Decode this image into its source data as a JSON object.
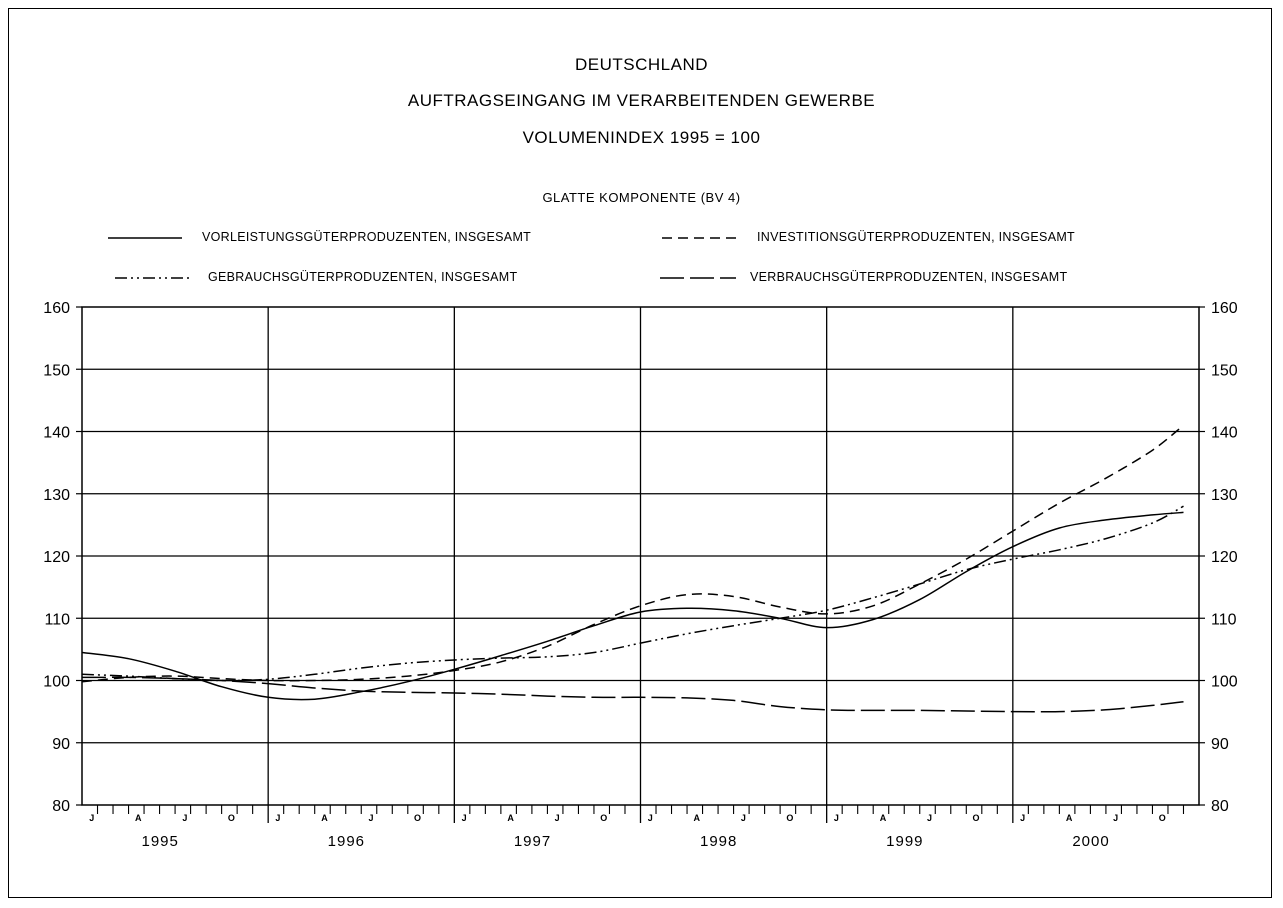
{
  "titles": {
    "line1": "DEUTSCHLAND",
    "line2": "AUFTRAGSEINGANG IM VERARBEITENDEN GEWERBE",
    "line3": "VOLUMENINDEX 1995 = 100",
    "subtitle": "GLATTE KOMPONENTE (BV 4)"
  },
  "chart_data": {
    "type": "line",
    "title": "DEUTSCHLAND",
    "xlabel": "",
    "ylabel": "",
    "ylim": [
      80,
      160
    ],
    "yticks": [
      80,
      90,
      100,
      110,
      120,
      130,
      140,
      150,
      160
    ],
    "years": [
      "1995",
      "1996",
      "1997",
      "1998",
      "1999",
      "2000"
    ],
    "quarter_labels": [
      "J",
      "A",
      "J",
      "O"
    ],
    "grid": true,
    "legend_position": "top",
    "x": [
      "1995-01",
      "1995-04",
      "1995-07",
      "1995-10",
      "1996-01",
      "1996-04",
      "1996-07",
      "1996-10",
      "1997-01",
      "1997-04",
      "1997-07",
      "1997-10",
      "1998-01",
      "1998-04",
      "1998-07",
      "1998-10",
      "1999-01",
      "1999-04",
      "1999-07",
      "1999-10",
      "2000-01",
      "2000-04",
      "2000-07",
      "2000-10",
      "2000-12"
    ],
    "series": [
      {
        "name": "VORLEISTUNGSGÜTERPRODUZENTEN, INSGESAMT",
        "style": "solid",
        "values": [
          104.5,
          103.5,
          101.5,
          99.0,
          97.3,
          97.0,
          98.2,
          99.8,
          101.8,
          104.0,
          106.3,
          108.8,
          111.0,
          111.6,
          111.2,
          110.0,
          108.5,
          109.8,
          113.0,
          117.5,
          121.5,
          124.5,
          125.8,
          126.6,
          127.0
        ]
      },
      {
        "name": "INVESTITIONSGÜTERPRODUZENTEN, INSGESAMT",
        "style": "dashed",
        "values": [
          99.8,
          100.5,
          100.7,
          100.3,
          100.0,
          100.0,
          100.2,
          100.7,
          101.6,
          103.0,
          105.5,
          109.0,
          112.0,
          113.8,
          113.5,
          111.8,
          110.7,
          112.0,
          115.5,
          119.5,
          124.0,
          128.5,
          132.5,
          137.0,
          141.0
        ]
      },
      {
        "name": "GEBRAUCHSGÜTERPRODUZENTEN, INSGESAMT",
        "style": "dashdotdot",
        "values": [
          101.0,
          100.7,
          100.3,
          100.0,
          100.2,
          101.0,
          102.0,
          102.8,
          103.3,
          103.6,
          103.8,
          104.5,
          106.0,
          107.5,
          108.8,
          110.0,
          111.3,
          113.3,
          115.5,
          117.8,
          119.5,
          121.0,
          122.8,
          125.3,
          128.0
        ]
      },
      {
        "name": "VERBRAUCHSGÜTERPRODUZENTEN, INSGESAMT",
        "style": "longdash",
        "values": [
          100.5,
          100.5,
          100.3,
          100.0,
          99.5,
          98.8,
          98.3,
          98.1,
          98.0,
          97.8,
          97.5,
          97.3,
          97.3,
          97.2,
          96.8,
          95.8,
          95.3,
          95.2,
          95.2,
          95.1,
          95.0,
          95.0,
          95.3,
          96.0,
          96.6
        ]
      }
    ]
  }
}
